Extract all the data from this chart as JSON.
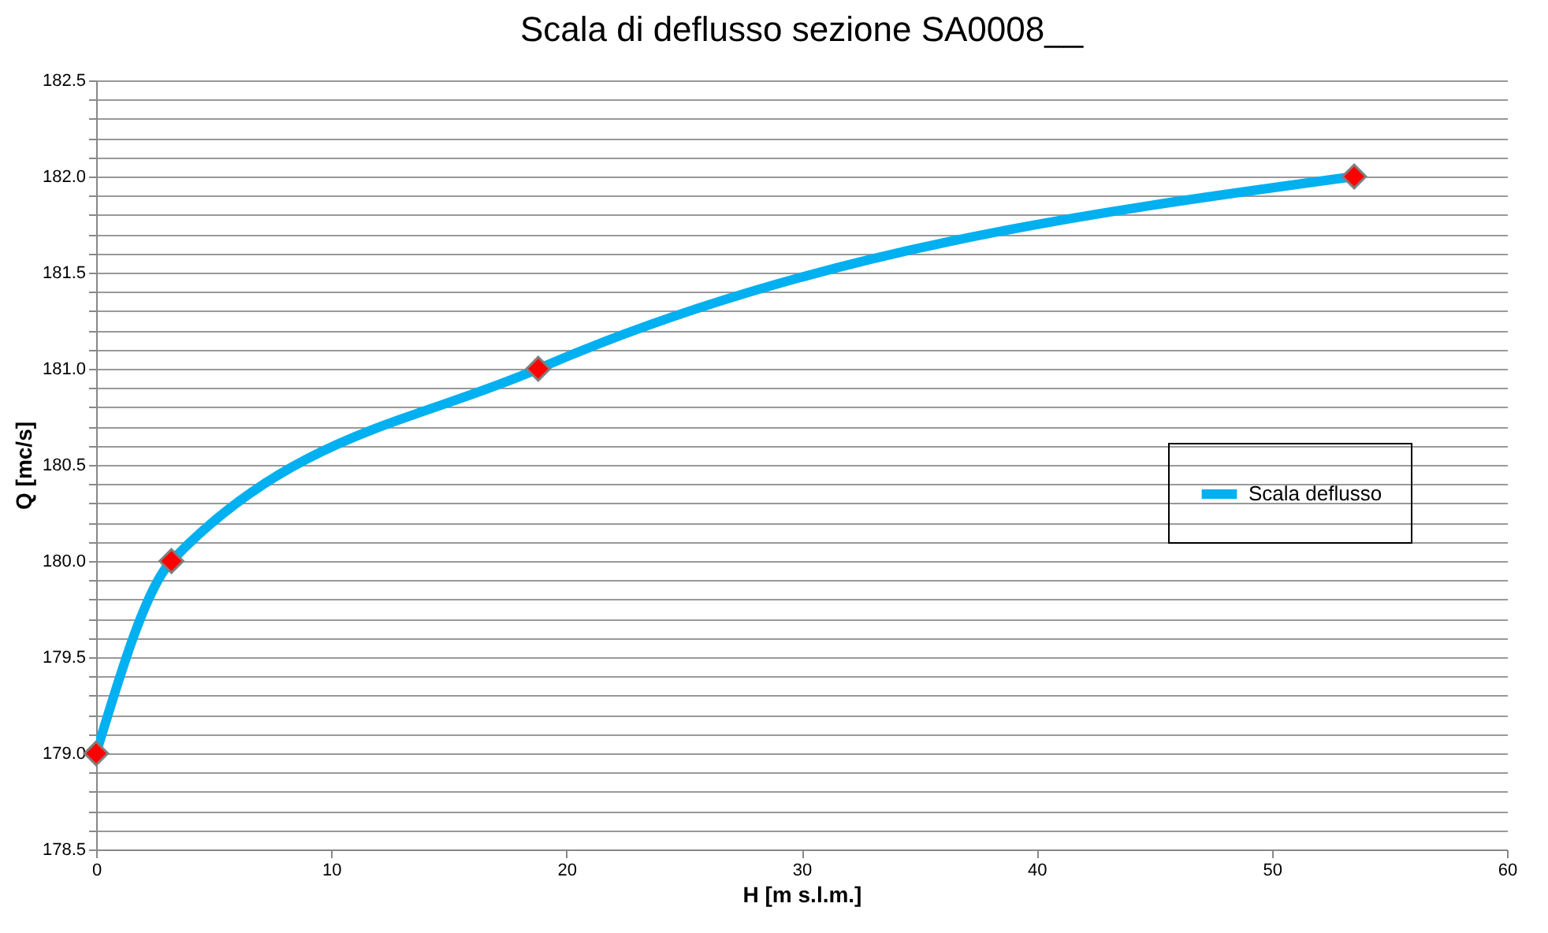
{
  "chart_data": {
    "type": "line",
    "title": "Scala di deflusso sezione SA0008__",
    "xlabel": "H [m s.l.m.]",
    "ylabel": "Q [mc/s]",
    "x": [
      0,
      3.2,
      18.8,
      53.5
    ],
    "series": [
      {
        "name": "Scala deflusso",
        "color": "#00b0f0",
        "marker": "none",
        "values": [
          179.0,
          180.0,
          181.0,
          182.0
        ]
      },
      {
        "color": "#ff0000",
        "type": "scatter",
        "marker": "diamond",
        "values": [
          179.0,
          180.0,
          181.0,
          182.0
        ]
      }
    ],
    "xlim": [
      0,
      60
    ],
    "xticks": [
      0,
      10,
      20,
      30,
      40,
      50,
      60
    ],
    "ylim": [
      178.5,
      182.5
    ],
    "yticks": [
      {
        "value": 178.5,
        "label": "178.5"
      },
      {
        "value": 178.6,
        "label": null
      },
      {
        "value": 178.7,
        "label": null
      },
      {
        "value": 178.8,
        "label": null
      },
      {
        "value": 178.9,
        "label": null
      },
      {
        "value": 179.0,
        "label": "179.0"
      },
      {
        "value": 179.1,
        "label": null
      },
      {
        "value": 179.2,
        "label": null
      },
      {
        "value": 179.3,
        "label": null
      },
      {
        "value": 179.4,
        "label": null
      },
      {
        "value": 179.5,
        "label": "179.5"
      },
      {
        "value": 179.6,
        "label": null
      },
      {
        "value": 179.7,
        "label": null
      },
      {
        "value": 179.8,
        "label": null
      },
      {
        "value": 179.9,
        "label": null
      },
      {
        "value": 180.0,
        "label": "180.0"
      },
      {
        "value": 180.1,
        "label": null
      },
      {
        "value": 180.2,
        "label": null
      },
      {
        "value": 180.3,
        "label": null
      },
      {
        "value": 180.4,
        "label": null
      },
      {
        "value": 180.5,
        "label": "180.5"
      },
      {
        "value": 180.6,
        "label": null
      },
      {
        "value": 180.7,
        "label": null
      },
      {
        "value": 180.8,
        "label": null
      },
      {
        "value": 180.9,
        "label": null
      },
      {
        "value": 181.0,
        "label": "181.0"
      },
      {
        "value": 181.1,
        "label": null
      },
      {
        "value": 181.2,
        "label": null
      },
      {
        "value": 181.3,
        "label": null
      },
      {
        "value": 181.4,
        "label": null
      },
      {
        "value": 181.5,
        "label": "181.5"
      },
      {
        "value": 181.6,
        "label": null
      },
      {
        "value": 181.7,
        "label": null
      },
      {
        "value": 181.8,
        "label": null
      },
      {
        "value": 181.9,
        "label": null
      },
      {
        "value": 182.0,
        "label": "182.0"
      },
      {
        "value": 182.1,
        "label": null
      },
      {
        "value": 182.2,
        "label": null
      },
      {
        "value": 182.3,
        "label": null
      },
      {
        "value": 182.4,
        "label": null
      },
      {
        "value": 182.5,
        "label": "182.5"
      }
    ],
    "grid": "y",
    "legend": "right"
  }
}
